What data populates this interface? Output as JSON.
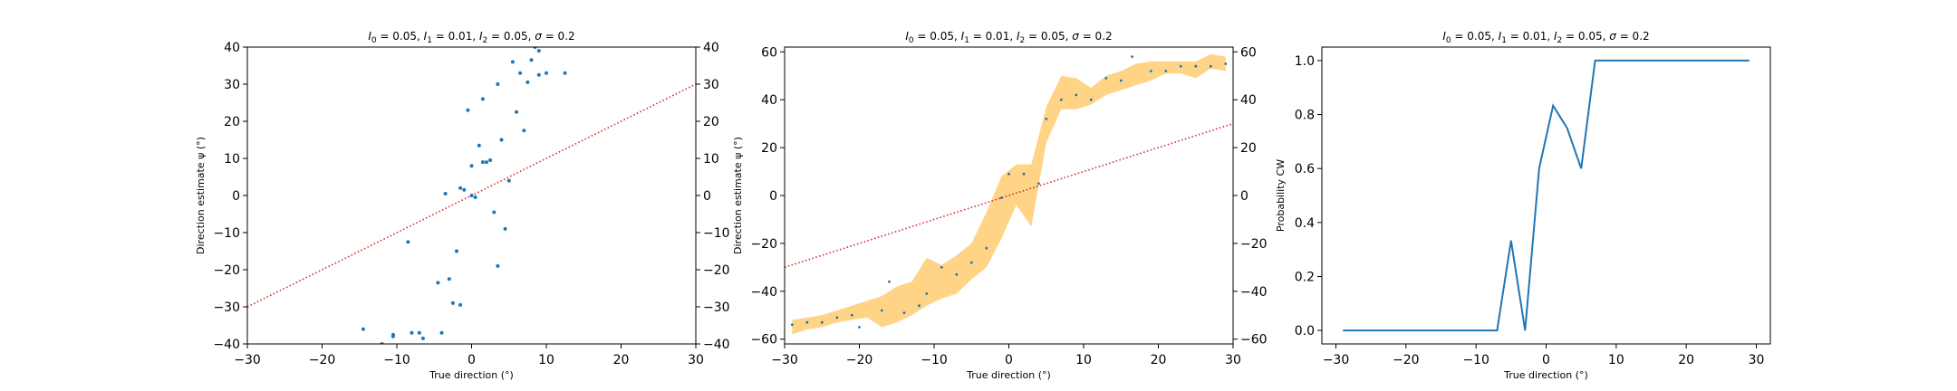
{
  "chart_data": [
    {
      "type": "scatter",
      "title": "I_0 = 0.05, I_1 = 0.01, I_2 = 0.05, σ = 0.2",
      "title_parts": [
        "I",
        "0",
        " = 0.05, ",
        "I",
        "1",
        " = 0.01, ",
        "I",
        "2",
        " = 0.05, ",
        "σ",
        " = 0.2"
      ],
      "xlabel": "True direction (°)",
      "ylabel": "Direction estimate ψ (°)",
      "xlim": [
        -30,
        30
      ],
      "ylim": [
        -40,
        40
      ],
      "xticks": [
        -30,
        -20,
        -10,
        0,
        10,
        20,
        30
      ],
      "yticks": [
        -40,
        -30,
        -20,
        -10,
        0,
        10,
        20,
        30,
        40
      ],
      "right_yticks": [
        -40,
        -30,
        -20,
        -10,
        0,
        10,
        20,
        30,
        40
      ],
      "grid": false,
      "reference_line": {
        "x": [
          -30,
          30
        ],
        "y": [
          -30,
          30
        ],
        "style": "dotted",
        "color": "#d62728"
      },
      "series": [
        {
          "color": "#1f77b4",
          "points": [
            [
              -14.5,
              -36.0
            ],
            [
              -12.0,
              -40.0
            ],
            [
              -10.5,
              -37.5
            ],
            [
              -10.5,
              -38.0
            ],
            [
              -8.0,
              -37.0
            ],
            [
              -7.0,
              -37.0
            ],
            [
              -6.5,
              -38.5
            ],
            [
              -4.5,
              -23.5
            ],
            [
              -4.0,
              -37.0
            ],
            [
              -8.5,
              -12.5
            ],
            [
              -3.5,
              0.5
            ],
            [
              -3.0,
              -22.5
            ],
            [
              -2.5,
              -29.0
            ],
            [
              -2.0,
              -15.0
            ],
            [
              -1.5,
              -29.5
            ],
            [
              -1.5,
              2.0
            ],
            [
              -1.0,
              1.5
            ],
            [
              -0.5,
              23.0
            ],
            [
              0.0,
              0.0
            ],
            [
              0.0,
              8.0
            ],
            [
              0.5,
              -0.5
            ],
            [
              1.0,
              13.5
            ],
            [
              1.5,
              26.0
            ],
            [
              1.5,
              9.0
            ],
            [
              2.0,
              9.0
            ],
            [
              2.5,
              9.5
            ],
            [
              3.0,
              -4.5
            ],
            [
              3.5,
              30.0
            ],
            [
              3.5,
              -19.0
            ],
            [
              4.0,
              15.0
            ],
            [
              4.5,
              -9.0
            ],
            [
              5.0,
              4.0
            ],
            [
              5.5,
              36.0
            ],
            [
              6.0,
              22.5
            ],
            [
              6.5,
              33.0
            ],
            [
              7.0,
              17.5
            ],
            [
              7.5,
              30.5
            ],
            [
              8.0,
              36.5
            ],
            [
              8.5,
              40.0
            ],
            [
              9.0,
              39.0
            ],
            [
              9.0,
              32.5
            ],
            [
              10.0,
              33.0
            ],
            [
              12.5,
              33.0
            ]
          ]
        }
      ]
    },
    {
      "type": "line",
      "title": "I_0 = 0.05, I_1 = 0.01, I_2 = 0.05, σ = 0.2",
      "title_parts": [
        "I",
        "0",
        " = 0.05, ",
        "I",
        "1",
        " = 0.01, ",
        "I",
        "2",
        " = 0.05, ",
        "σ",
        " = 0.2"
      ],
      "xlabel": "True direction (°)",
      "ylabel": "Direction estimate ψ (°)",
      "xlim": [
        -30,
        30
      ],
      "ylim": [
        -62,
        62
      ],
      "xticks": [
        -30,
        -20,
        -10,
        0,
        10,
        20,
        30
      ],
      "yticks": [
        -60,
        -40,
        -20,
        0,
        20,
        40,
        60
      ],
      "right_yticks": [
        -60,
        -40,
        -20,
        0,
        20,
        40,
        60
      ],
      "grid": false,
      "reference_line": {
        "x": [
          -30,
          30
        ],
        "y": [
          -30,
          30
        ],
        "style": "dotted",
        "color": "#d62728"
      },
      "band_color": "#ffd27f",
      "point_color": "#1f77b4",
      "x": [
        -29,
        -27,
        -25,
        -23,
        -21,
        -19,
        -17,
        -15,
        -13,
        -11,
        -9,
        -7,
        -5,
        -3,
        -1,
        1,
        3,
        5,
        7,
        9,
        11,
        13,
        15,
        17,
        19,
        21,
        23,
        25,
        27,
        29
      ],
      "mean": [
        -54,
        -53,
        -53,
        -51,
        -50,
        -48,
        -45,
        -49,
        -46,
        -42,
        -35,
        -33,
        -31,
        -23,
        -2,
        6,
        2,
        30,
        42,
        42,
        41,
        47,
        48,
        53,
        52,
        53,
        54,
        53,
        56,
        55
      ],
      "lower": [
        -58,
        -56,
        -55,
        -53,
        -52,
        -51,
        -55,
        -53,
        -50,
        -46,
        -43,
        -41,
        -35,
        -30,
        -18,
        -4,
        -13,
        22,
        36,
        36,
        38,
        42,
        44,
        46,
        48,
        51,
        51,
        49,
        53,
        52
      ],
      "upper": [
        -52,
        -51,
        -50,
        -48,
        -46,
        -44,
        -42,
        -38,
        -36,
        -26,
        -29,
        -25,
        -20,
        -7,
        8,
        13,
        13,
        37,
        50,
        49,
        45,
        50,
        52,
        55,
        56,
        56,
        56,
        56,
        59,
        58
      ],
      "points": [
        [
          -29,
          -54
        ],
        [
          -27,
          -53
        ],
        [
          -25,
          -53
        ],
        [
          -23,
          -51
        ],
        [
          -21,
          -50
        ],
        [
          -20,
          -55
        ],
        [
          -17,
          -48
        ],
        [
          -16,
          -36
        ],
        [
          -14,
          -49
        ],
        [
          -12,
          -46
        ],
        [
          -11,
          -41
        ],
        [
          -9,
          -30
        ],
        [
          -7,
          -33
        ],
        [
          -5,
          -28
        ],
        [
          -3,
          -22
        ],
        [
          -1,
          -1
        ],
        [
          0,
          9
        ],
        [
          2,
          9
        ],
        [
          4,
          5
        ],
        [
          5,
          32
        ],
        [
          7,
          40
        ],
        [
          9,
          42
        ],
        [
          11,
          40
        ],
        [
          13,
          49
        ],
        [
          15,
          48
        ],
        [
          16.5,
          58
        ],
        [
          19,
          52
        ],
        [
          21,
          52
        ],
        [
          23,
          54
        ],
        [
          25,
          54
        ],
        [
          27,
          54
        ],
        [
          29,
          55
        ]
      ]
    },
    {
      "type": "line",
      "title": "I_0 = 0.05, I_1 = 0.01, I_2 = 0.05, σ = 0.2",
      "title_parts": [
        "I",
        "0",
        " = 0.05, ",
        "I",
        "1",
        " = 0.01, ",
        "I",
        "2",
        " = 0.05, ",
        "σ",
        " = 0.2"
      ],
      "xlabel": "True direction (°)",
      "ylabel": "Probability CW",
      "xlim": [
        -32,
        32
      ],
      "ylim": [
        -0.05,
        1.05
      ],
      "xticks": [
        -30,
        -20,
        -10,
        0,
        10,
        20,
        30
      ],
      "yticks": [
        "0.0",
        "0.2",
        "0.4",
        "0.6",
        "0.8",
        "1.0"
      ],
      "grid": false,
      "series": [
        {
          "color": "#1f77b4",
          "x": [
            -29,
            -27,
            -25,
            -23,
            -21,
            -19,
            -17,
            -15,
            -13,
            -11,
            -9,
            -7,
            -5,
            -3,
            -1,
            1,
            3,
            5,
            7,
            9,
            11,
            13,
            15,
            17,
            19,
            21,
            23,
            25,
            27,
            29
          ],
          "y": [
            0,
            0,
            0,
            0,
            0,
            0,
            0,
            0,
            0,
            0,
            0,
            0,
            0.333,
            0,
            0.6,
            0.833,
            0.75,
            0.6,
            1,
            1,
            1,
            1,
            1,
            1,
            1,
            1,
            1,
            1,
            1,
            1
          ]
        }
      ]
    }
  ]
}
